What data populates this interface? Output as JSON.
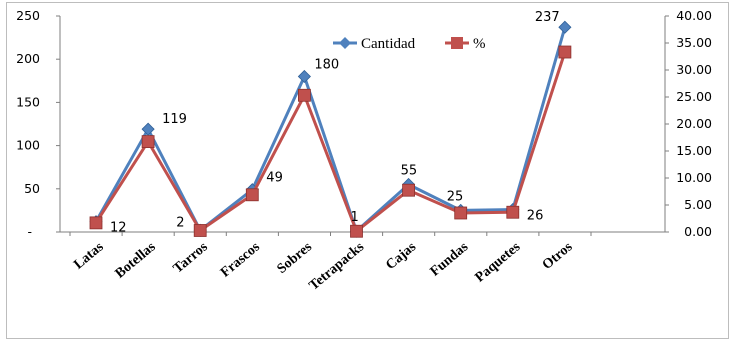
{
  "chart_data": {
    "type": "line",
    "categories": [
      "Latas",
      "Botellas",
      "Tarros",
      "Frascos",
      "Sobres",
      "Tetrapacks",
      "Cajas",
      "Fundas",
      "Paquetes",
      "Otros"
    ],
    "series": [
      {
        "name": "Cantidad",
        "axis": "left",
        "color": "#4F81BD",
        "marker": "diamond",
        "values": [
          12,
          119,
          2,
          49,
          180,
          1,
          55,
          25,
          26,
          237
        ]
      },
      {
        "name": "%",
        "axis": "right",
        "color": "#C0504D",
        "marker": "square",
        "values": [
          1.69,
          16.74,
          0.28,
          6.89,
          25.32,
          0.14,
          7.74,
          3.52,
          3.66,
          33.33
        ]
      }
    ],
    "data_labels": [
      "12",
      "119",
      "2",
      "49",
      "180",
      "1",
      "55",
      "25",
      "26",
      "237"
    ],
    "y_left": {
      "min": 0,
      "max": 250,
      "ticks": [
        "-",
        "50",
        "100",
        "150",
        "200",
        "250"
      ]
    },
    "y_right": {
      "min": 0,
      "max": 40,
      "ticks": [
        "0.00",
        "5.00",
        "10.00",
        "15.00",
        "20.00",
        "25.00",
        "30.00",
        "35.00",
        "40.00"
      ]
    },
    "legend": {
      "position": "top-center",
      "entries": [
        "Cantidad",
        "%"
      ]
    },
    "grid": false,
    "title": "",
    "xlabel": "",
    "ylabel": ""
  }
}
